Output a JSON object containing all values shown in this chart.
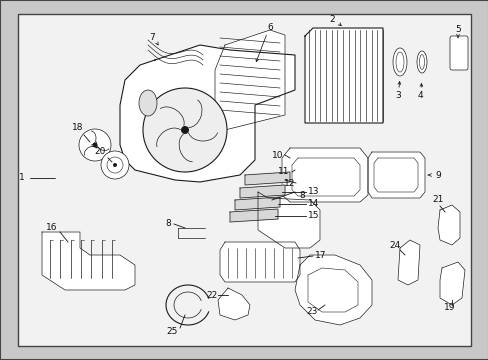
{
  "bg_color": "#c8c8c8",
  "inner_bg": "#f2f2f2",
  "border_color": "#444444",
  "line_color": "#1a1a1a",
  "text_color": "#111111",
  "label_fontsize": 6.5,
  "figsize": [
    4.89,
    3.6
  ],
  "dpi": 100
}
